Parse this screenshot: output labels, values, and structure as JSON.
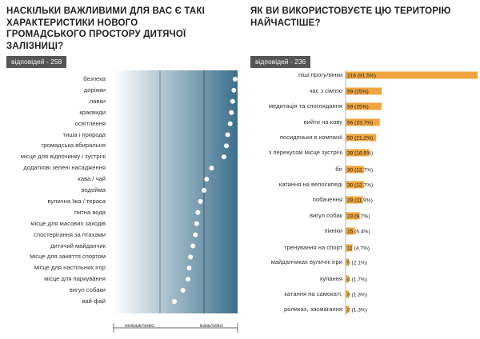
{
  "chart_data": [
    {
      "type": "dot",
      "title": "НАСКІЛЬКИ ВАЖЛИВИМИ ДЛЯ ВАС Є ТАКІ ХАРАКТЕРИСТИКИ НОВОГО ГРОМАДСЬКОГО ПРОСТОРУ ДИТЯЧОЇ ЗАЛІЗНИЦІ?",
      "responses_label": "відповідей - 258",
      "xlabel_left": "неважливо",
      "xlabel_right": "важливо",
      "xlim": [
        0,
        1
      ],
      "categories": [
        "безпека",
        "доріжки",
        "лавки",
        "краєвиди",
        "освітлення",
        "тиша і природа",
        "громадська вбиральня",
        "місце для відпочинку і зустрічі",
        "додаткові зелені насадження",
        "кава / чай",
        "водойма",
        "вулична їжа / тераса",
        "питна вода",
        "місце для масових заходів",
        "спостерігання за птахами",
        "дитячий майданчик",
        "місце для заняття спортом",
        "місце для настільних ігор",
        "місце для паркування",
        "вигул собаки",
        "вай-фай"
      ],
      "values": [
        0.98,
        0.97,
        0.96,
        0.95,
        0.94,
        0.92,
        0.91,
        0.89,
        0.79,
        0.75,
        0.73,
        0.7,
        0.68,
        0.67,
        0.66,
        0.64,
        0.62,
        0.61,
        0.6,
        0.56,
        0.49
      ]
    },
    {
      "type": "bar",
      "title": "ЯК ВИ ВИКОРИСТОВУЄТЕ ЦЮ ТЕРИТОРІЮ НАЙЧАСТІШЕ?",
      "responses_label": "відповідей - 236",
      "categories": [
        "піші прогулянки",
        "час з сім'єю",
        "медитація та споглядання",
        "вийти на каву",
        "посиденьки в компанії",
        "з перекусом місце зустрічі",
        "біг",
        "катання на велосипеді",
        "побачення",
        "вигул собак",
        "пікніки",
        "тренування на спорт",
        "майданчиках вуличні ігри",
        "купання",
        "катання на самокаті,",
        "роликах, засмагання"
      ],
      "values": [
        216,
        59,
        59,
        56,
        50,
        39,
        30,
        30,
        28,
        23,
        15,
        11,
        5,
        4,
        3,
        3
      ],
      "data_labels": [
        "216 (91.5%)",
        "59 (25%)",
        "59 (25%)",
        "56 (23.7%)",
        "50 (21.2%)",
        "39 (16.5%)",
        "30 (12.7%)",
        "30 (12.7%)",
        "28 (11.9%)",
        "23 (9.7%)",
        "15 (6.4%)",
        "11 (4.7%)",
        "5 (2.1%)",
        "4 (1.7%)",
        "3 (1.3%)",
        "3 (1.3%)"
      ],
      "xlim": [
        0,
        216
      ]
    }
  ],
  "colors": {
    "bar": "#f0a640",
    "gradient_start": "#ffffff",
    "gradient_end": "#3c6f8c",
    "dot": "#ffffff",
    "badge": "#555555"
  }
}
